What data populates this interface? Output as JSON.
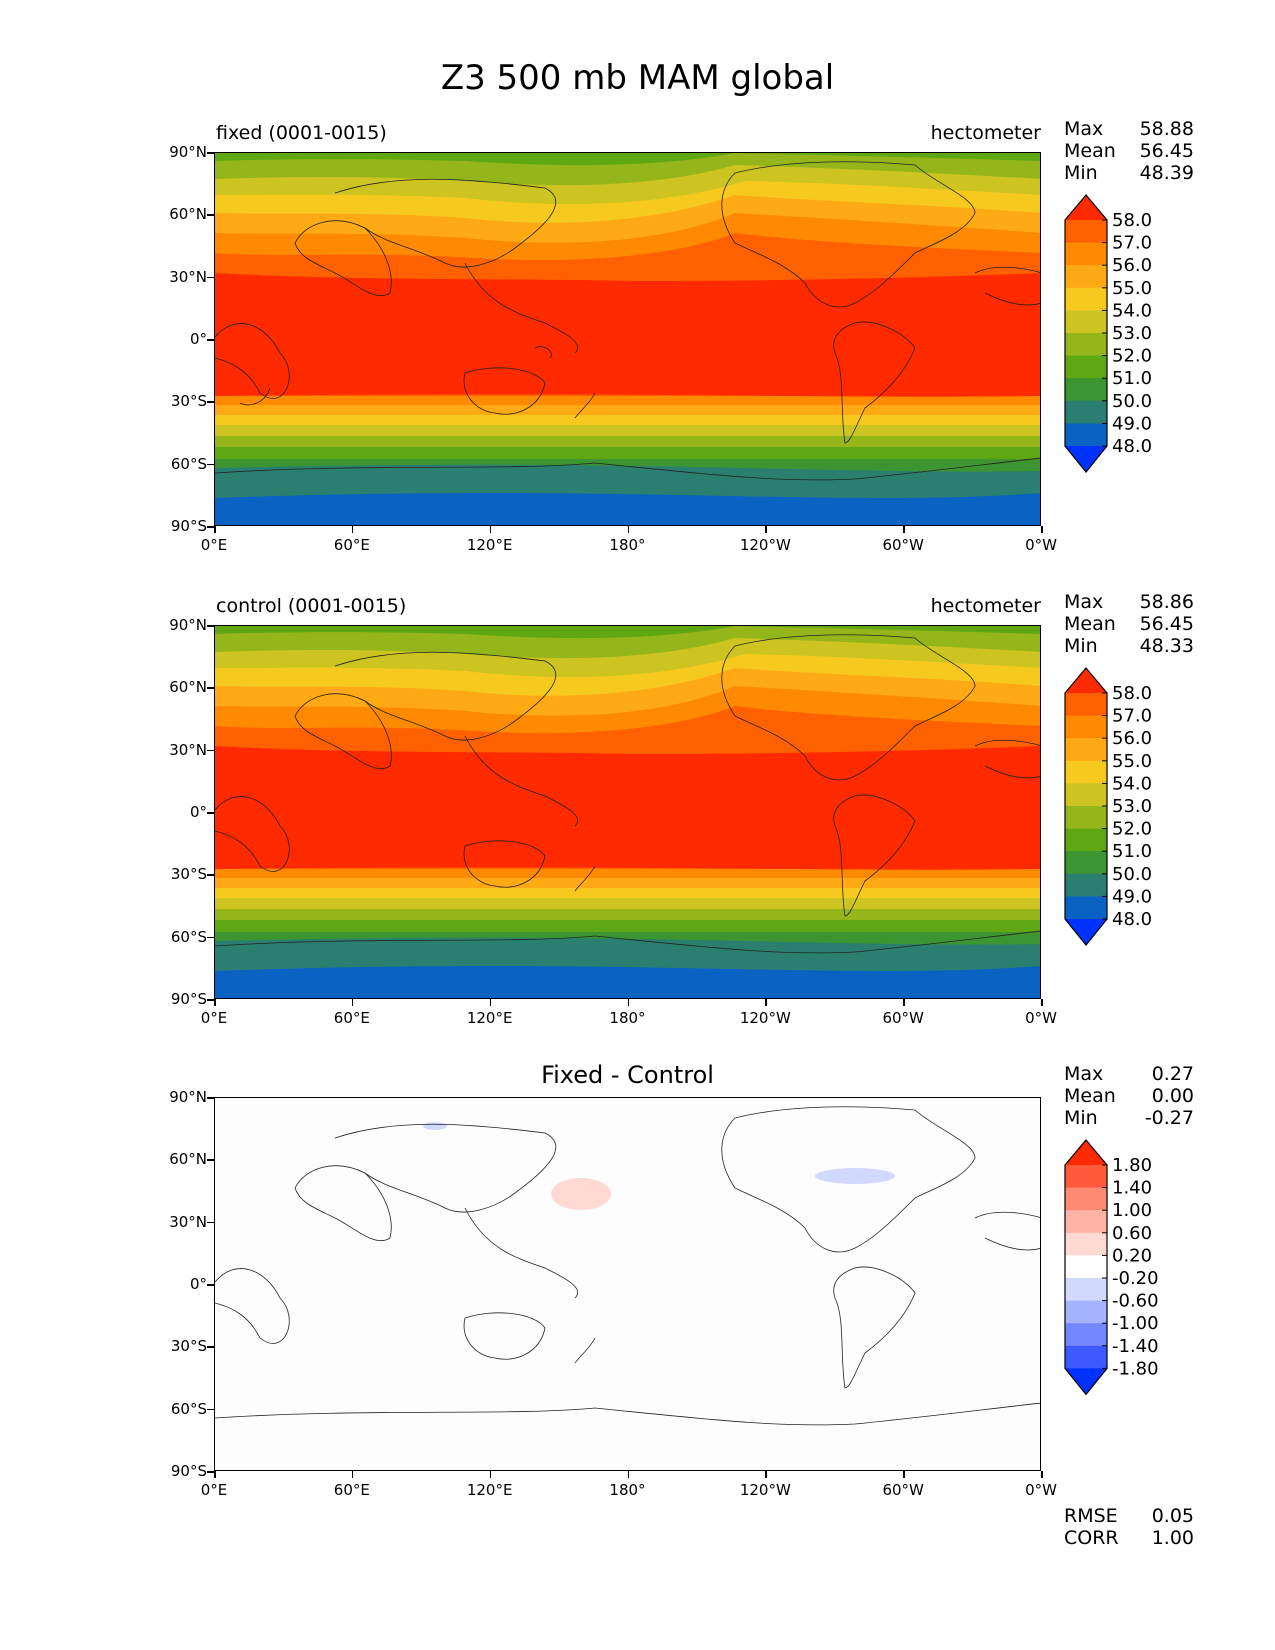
{
  "figure_title": "Z3 500 mb MAM global",
  "x_ticks": [
    "0°E",
    "60°E",
    "120°E",
    "180°",
    "120°W",
    "60°W",
    "0°W"
  ],
  "y_ticks": [
    "90°N",
    "60°N",
    "30°N",
    "0°",
    "30°S",
    "60°S",
    "90°S"
  ],
  "stat_labels": {
    "max": "Max",
    "mean": "Mean",
    "min": "Min",
    "rmse": "RMSE",
    "corr": "CORR"
  },
  "panels": [
    {
      "left_label": "fixed (0001-0015)",
      "right_label": "hectometer",
      "max": "58.88",
      "mean": "56.45",
      "min": "48.39",
      "colorbar_labels": [
        "58.0",
        "57.0",
        "56.0",
        "55.0",
        "54.0",
        "53.0",
        "52.0",
        "51.0",
        "50.0",
        "49.0",
        "48.0"
      ],
      "colorbar_colors": [
        "#ff2a00",
        "#ff6100",
        "#ff8a00",
        "#ffaa15",
        "#f6c91f",
        "#cdc421",
        "#95b61a",
        "#5fa713",
        "#3c9531",
        "#2b7f70",
        "#0a63c2",
        "#0032ff"
      ]
    },
    {
      "left_label": "control (0001-0015)",
      "right_label": "hectometer",
      "max": "58.86",
      "mean": "56.45",
      "min": "48.33",
      "colorbar_labels": [
        "58.0",
        "57.0",
        "56.0",
        "55.0",
        "54.0",
        "53.0",
        "52.0",
        "51.0",
        "50.0",
        "49.0",
        "48.0"
      ],
      "colorbar_colors": [
        "#ff2a00",
        "#ff6100",
        "#ff8a00",
        "#ffaa15",
        "#f6c91f",
        "#cdc421",
        "#95b61a",
        "#5fa713",
        "#3c9531",
        "#2b7f70",
        "#0a63c2",
        "#0032ff"
      ]
    },
    {
      "title": "Fixed - Control",
      "max": "0.27",
      "mean": "0.00",
      "min": "-0.27",
      "rmse": "0.05",
      "corr": "1.00",
      "colorbar_labels": [
        "1.80",
        "1.40",
        "1.00",
        "0.60",
        "0.20",
        "-0.20",
        "-0.60",
        "-1.00",
        "-1.40",
        "-1.80"
      ],
      "colorbar_colors": [
        "#ff2a00",
        "#ff5a3c",
        "#ff8b73",
        "#ffb3a6",
        "#ffd9d2",
        "#ffffff",
        "#d2d9ff",
        "#a6b3ff",
        "#7387ff",
        "#3c5aff",
        "#0032ff"
      ]
    }
  ]
}
